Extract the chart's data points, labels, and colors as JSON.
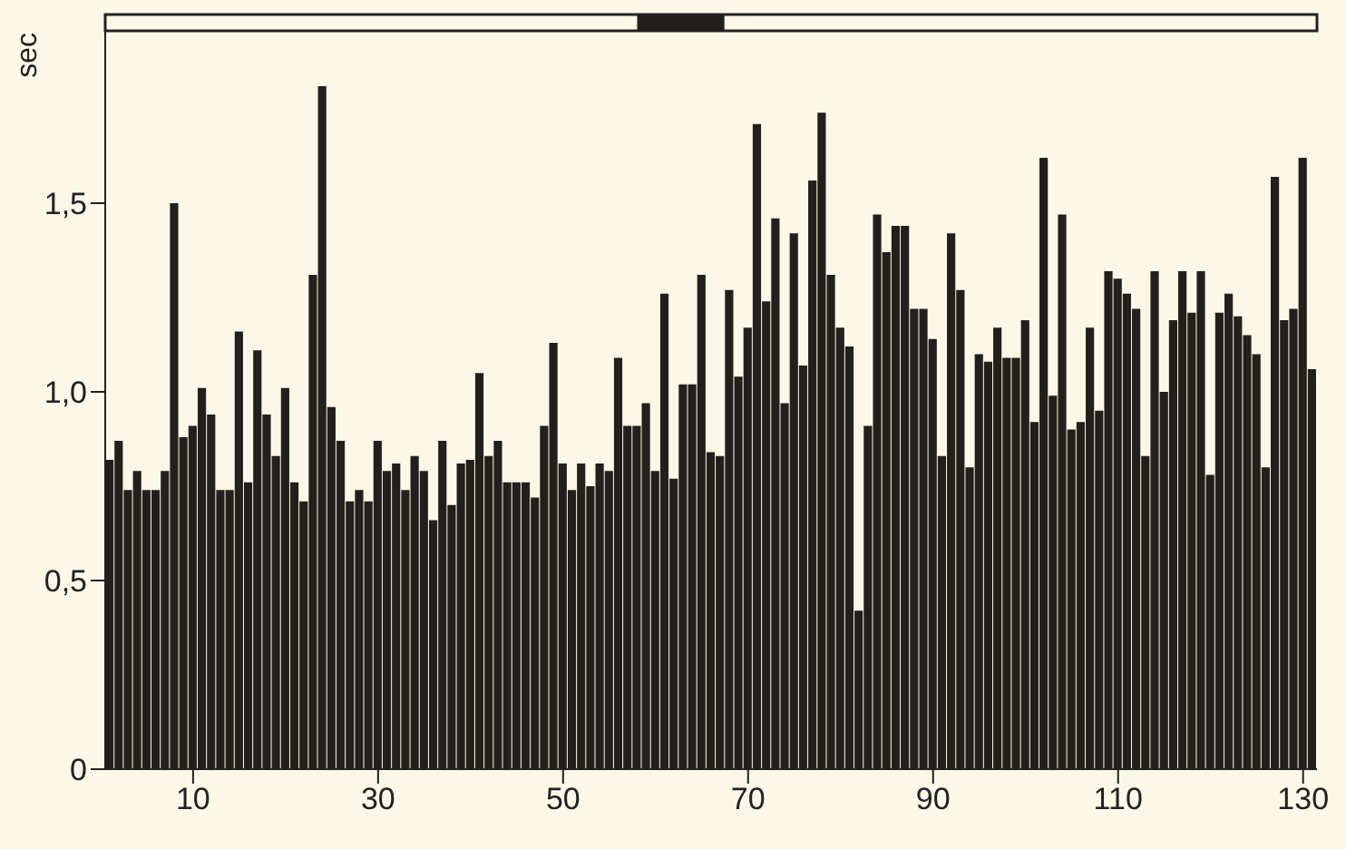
{
  "chart_data": {
    "type": "bar",
    "ylabel": "sec",
    "color": "#231f1c",
    "x": [
      1,
      2,
      3,
      4,
      5,
      6,
      7,
      8,
      9,
      10,
      11,
      12,
      13,
      14,
      15,
      16,
      17,
      18,
      19,
      20,
      21,
      22,
      23,
      24,
      25,
      26,
      27,
      28,
      29,
      30,
      31,
      32,
      33,
      34,
      35,
      36,
      37,
      38,
      39,
      40,
      41,
      42,
      43,
      44,
      45,
      46,
      47,
      48,
      49,
      50,
      51,
      52,
      53,
      54,
      55,
      56,
      57,
      58,
      59,
      60,
      61,
      62,
      63,
      64,
      65,
      66,
      67,
      68,
      69,
      70,
      71,
      72,
      73,
      74,
      75,
      76,
      77,
      78,
      79,
      80,
      81,
      82,
      83,
      84,
      85,
      86,
      87,
      88,
      89,
      90,
      91,
      92,
      93,
      94,
      95,
      96,
      97,
      98,
      99,
      100,
      101,
      102,
      103,
      104,
      105,
      106,
      107,
      108,
      109,
      110,
      111,
      112,
      113,
      114,
      115,
      116,
      117,
      118,
      119,
      120,
      121,
      122,
      123,
      124,
      125,
      126,
      127,
      128,
      129,
      130,
      131
    ],
    "values": [
      0.82,
      0.87,
      0.74,
      0.79,
      0.74,
      0.74,
      0.79,
      1.5,
      0.88,
      0.91,
      1.01,
      0.94,
      0.74,
      0.74,
      1.16,
      0.76,
      1.11,
      0.94,
      0.83,
      1.01,
      0.76,
      0.71,
      1.31,
      1.81,
      0.96,
      0.87,
      0.71,
      0.74,
      0.71,
      0.87,
      0.79,
      0.81,
      0.74,
      0.83,
      0.79,
      0.66,
      0.87,
      0.7,
      0.81,
      0.82,
      1.05,
      0.83,
      0.87,
      0.76,
      0.76,
      0.76,
      0.72,
      0.91,
      1.13,
      0.81,
      0.74,
      0.81,
      0.75,
      0.81,
      0.79,
      1.09,
      0.91,
      0.91,
      0.97,
      0.79,
      1.26,
      0.77,
      1.02,
      1.02,
      1.31,
      0.84,
      0.83,
      1.27,
      1.04,
      1.17,
      1.71,
      1.24,
      1.46,
      0.97,
      1.42,
      1.07,
      1.56,
      1.74,
      1.31,
      1.17,
      1.12,
      0.42,
      0.91,
      1.47,
      1.37,
      1.44,
      1.44,
      1.22,
      1.22,
      1.14,
      0.83,
      1.42,
      1.27,
      0.8,
      1.1,
      1.08,
      1.17,
      1.09,
      1.09,
      1.19,
      0.92,
      1.62,
      0.99,
      1.47,
      0.9,
      0.92,
      1.17,
      0.95,
      1.32,
      1.3,
      1.26,
      1.22,
      0.83,
      1.32,
      1.0,
      1.19,
      1.32,
      1.21,
      1.32,
      0.78,
      1.21,
      1.26,
      1.2,
      1.15,
      1.1,
      0.8,
      1.57,
      1.19,
      1.22,
      1.62,
      1.06
    ],
    "xlim": [
      0.5,
      131.5
    ],
    "xticks": [
      10,
      30,
      50,
      70,
      90,
      110,
      130
    ],
    "ylim": [
      0,
      2
    ],
    "yticks": [
      0,
      {
        "value": 0.5,
        "label": "0,5"
      },
      {
        "value": 1,
        "label": "1,0"
      },
      {
        "value": 1.5,
        "label": "1,5"
      }
    ],
    "grid": false,
    "legend": false
  }
}
